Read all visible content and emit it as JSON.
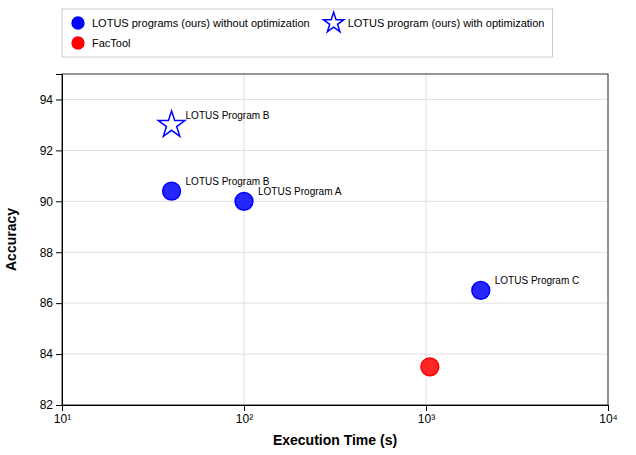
{
  "chart_data": {
    "type": "scatter",
    "xlabel": "Execution Time (s)",
    "ylabel": "Accuracy",
    "log": "x",
    "grid": true,
    "legend": "top",
    "xlim": [
      10,
      10000
    ],
    "xticks": [
      {
        "value": 10,
        "label": "10¹"
      },
      {
        "value": 100,
        "label": "10²"
      },
      {
        "value": 1000,
        "label": "10³"
      },
      {
        "value": 10000,
        "label": "10⁴"
      }
    ],
    "ylim": [
      82,
      95
    ],
    "yticks": [
      82,
      84,
      86,
      88,
      90,
      92,
      94
    ],
    "series": [
      {
        "name": "LOTUS programs (ours) without optimization",
        "color": "#0000ff",
        "marker": "circle",
        "x": [
          40,
          100,
          2000
        ],
        "values": [
          90.4,
          90.0,
          86.5
        ]
      },
      {
        "name": "FacTool",
        "color": "#ff0000",
        "marker": "circle",
        "x": [
          1050
        ],
        "values": [
          83.5
        ]
      },
      {
        "name": "LOTUS program (ours) with optimization",
        "color": "#0000ff",
        "marker": "star",
        "x": [
          40
        ],
        "values": [
          93.0
        ]
      }
    ],
    "annotations": [
      {
        "text": "LOTUS Program B",
        "x": 40,
        "y": 90.4
      },
      {
        "text": "LOTUS Program A",
        "x": 100,
        "y": 90.0
      },
      {
        "text": "LOTUS Program C",
        "x": 2000,
        "y": 86.5
      },
      {
        "text": "LOTUS Program B",
        "x": 40,
        "y": 93.0
      }
    ]
  }
}
